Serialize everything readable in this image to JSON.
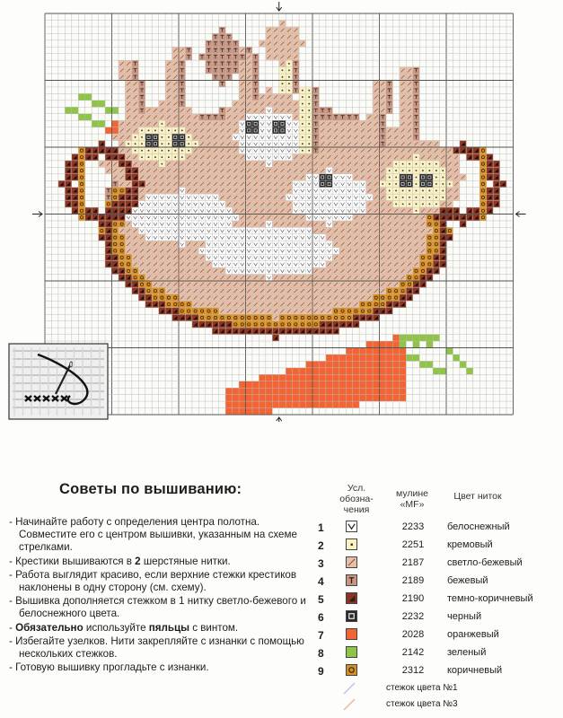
{
  "tips": {
    "title": "Советы по вышиванию:",
    "items": [
      {
        "pre": "- Начинайте работу с определения центра полотна. Совместите его с центром вышивки, указанным на схеме стрелками.",
        "bold": "",
        "post": ""
      },
      {
        "pre": "- Крестики вышиваются в ",
        "bold": "2",
        "post": " шерстяные нитки."
      },
      {
        "pre": "- Работа выглядит красиво, если верхние стежки крестиков наклонены в одну сторону (см. схему).",
        "bold": "",
        "post": ""
      },
      {
        "pre": "- Вышивка дополняется стежком в 1 нитку светло-бежевого и белоснежного цвета.",
        "bold": "",
        "post": ""
      },
      {
        "pre": "- ",
        "bold": "Обязательно",
        "post": " используйте "
      },
      {
        "pre": "- Избегайте узелков. Нити закрепляйте с изнанки с помощью нескольких стежков.",
        "bold": "",
        "post": ""
      },
      {
        "pre": "- Готовую вышивку прогладьте с изнанки.",
        "bold": "",
        "post": ""
      }
    ],
    "hoop_bold": "пяльцы",
    "hoop_post": " с винтом."
  },
  "legend": {
    "col_symbol": "Усл. обозна-чения",
    "col_mouline": "мулине «MF»",
    "col_color": "Цвет ниток",
    "rows": [
      {
        "n": "1",
        "code": "2233",
        "name": "белоснежный",
        "color": "#ffffff",
        "mark": "check"
      },
      {
        "n": "2",
        "code": "2251",
        "name": "кремовый",
        "color": "#fbf2c4",
        "mark": "dot"
      },
      {
        "n": "3",
        "code": "2187",
        "name": "светло-бежевый",
        "color": "#e8bfa6",
        "mark": "slash"
      },
      {
        "n": "4",
        "code": "2189",
        "name": "бежевый",
        "color": "#c99480",
        "mark": "T"
      },
      {
        "n": "5",
        "code": "2190",
        "name": "темно-коричневый",
        "color": "#8a3422",
        "mark": "tri"
      },
      {
        "n": "6",
        "code": "2232",
        "name": "черный",
        "color": "#2a2a2a",
        "mark": "sq"
      },
      {
        "n": "7",
        "code": "2028",
        "name": "оранжевый",
        "color": "#f26433",
        "mark": "none"
      },
      {
        "n": "8",
        "code": "2142",
        "name": "зеленый",
        "color": "#8fc447",
        "mark": "none"
      },
      {
        "n": "9",
        "code": "2312",
        "name": "коричневый",
        "color": "#d98e22",
        "mark": "circle"
      }
    ],
    "stitches": [
      {
        "name": "стежок цвета №1",
        "color": "#c8c8ee"
      },
      {
        "name": "стежок цвета №3",
        "color": "#e8bfa6"
      }
    ]
  }
}
